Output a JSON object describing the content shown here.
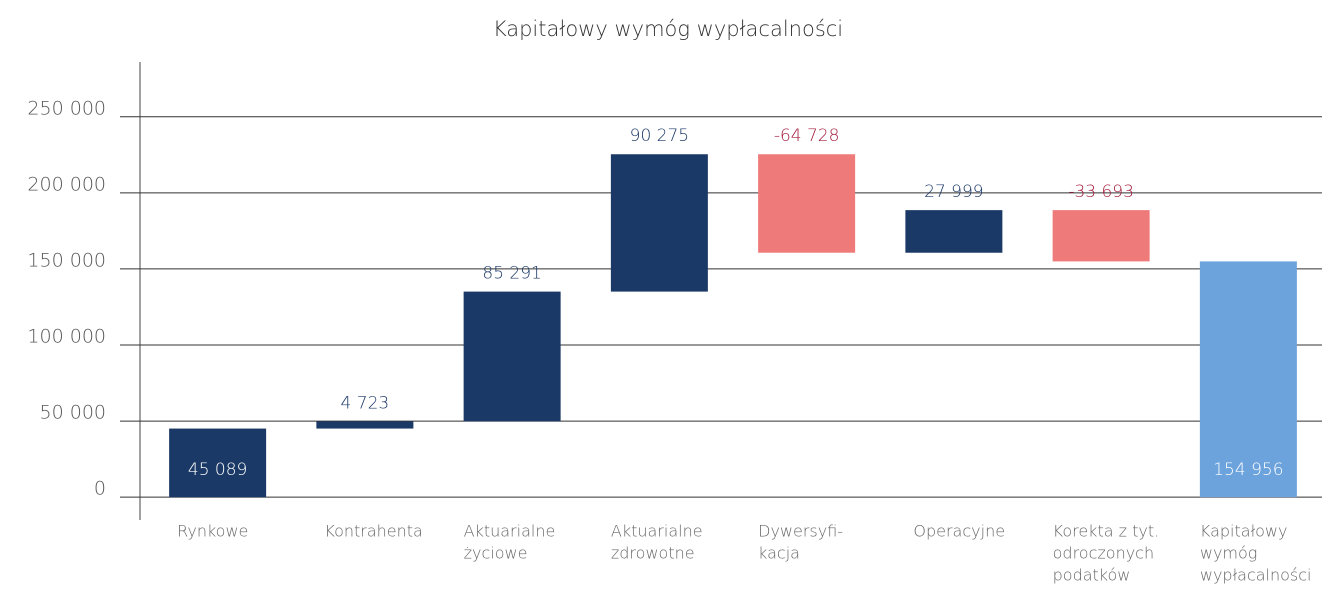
{
  "chart_data": {
    "type": "waterfall",
    "title": "Kapitałowy wymóg wypłacalności",
    "categories": [
      [
        "Rynkowe"
      ],
      [
        "Kontrahenta"
      ],
      [
        "Aktuarialne",
        "życiowe"
      ],
      [
        "Aktuarialne",
        "zdrowotne"
      ],
      [
        "Dywersyfi-",
        "kacja"
      ],
      [
        "Operacyjne"
      ],
      [
        "Korekta z tyt.",
        "odroczonych",
        "podatków"
      ],
      [
        "Kapitałowy",
        "wymóg",
        "wypłacalności"
      ]
    ],
    "values": [
      45089,
      4723,
      85291,
      90275,
      -64728,
      27999,
      -33693,
      154956
    ],
    "value_labels": [
      "45 089",
      "4 723",
      "85 291",
      "90 275",
      "-64 728",
      "27 999",
      "-33 693",
      "154 956"
    ],
    "measure": [
      "relative",
      "relative",
      "relative",
      "relative",
      "relative",
      "relative",
      "relative",
      "total"
    ],
    "colors": {
      "increase": "#1b3966",
      "decrease": "#ef7a7a",
      "total": "#6ca3dc"
    },
    "label_colors": {
      "increase": "#1b3966",
      "decrease": "#a31c3c"
    },
    "ylim": [
      -15000,
      286000
    ],
    "yticks": [
      0,
      {
        "value": 50000,
        "label": "50 000"
      },
      {
        "value": 100000,
        "label": "100 000"
      },
      {
        "value": 150000,
        "label": "150 000"
      },
      {
        "value": 200000,
        "label": "200 000"
      },
      {
        "value": 250000,
        "label": "250 000"
      }
    ],
    "grid": true
  }
}
